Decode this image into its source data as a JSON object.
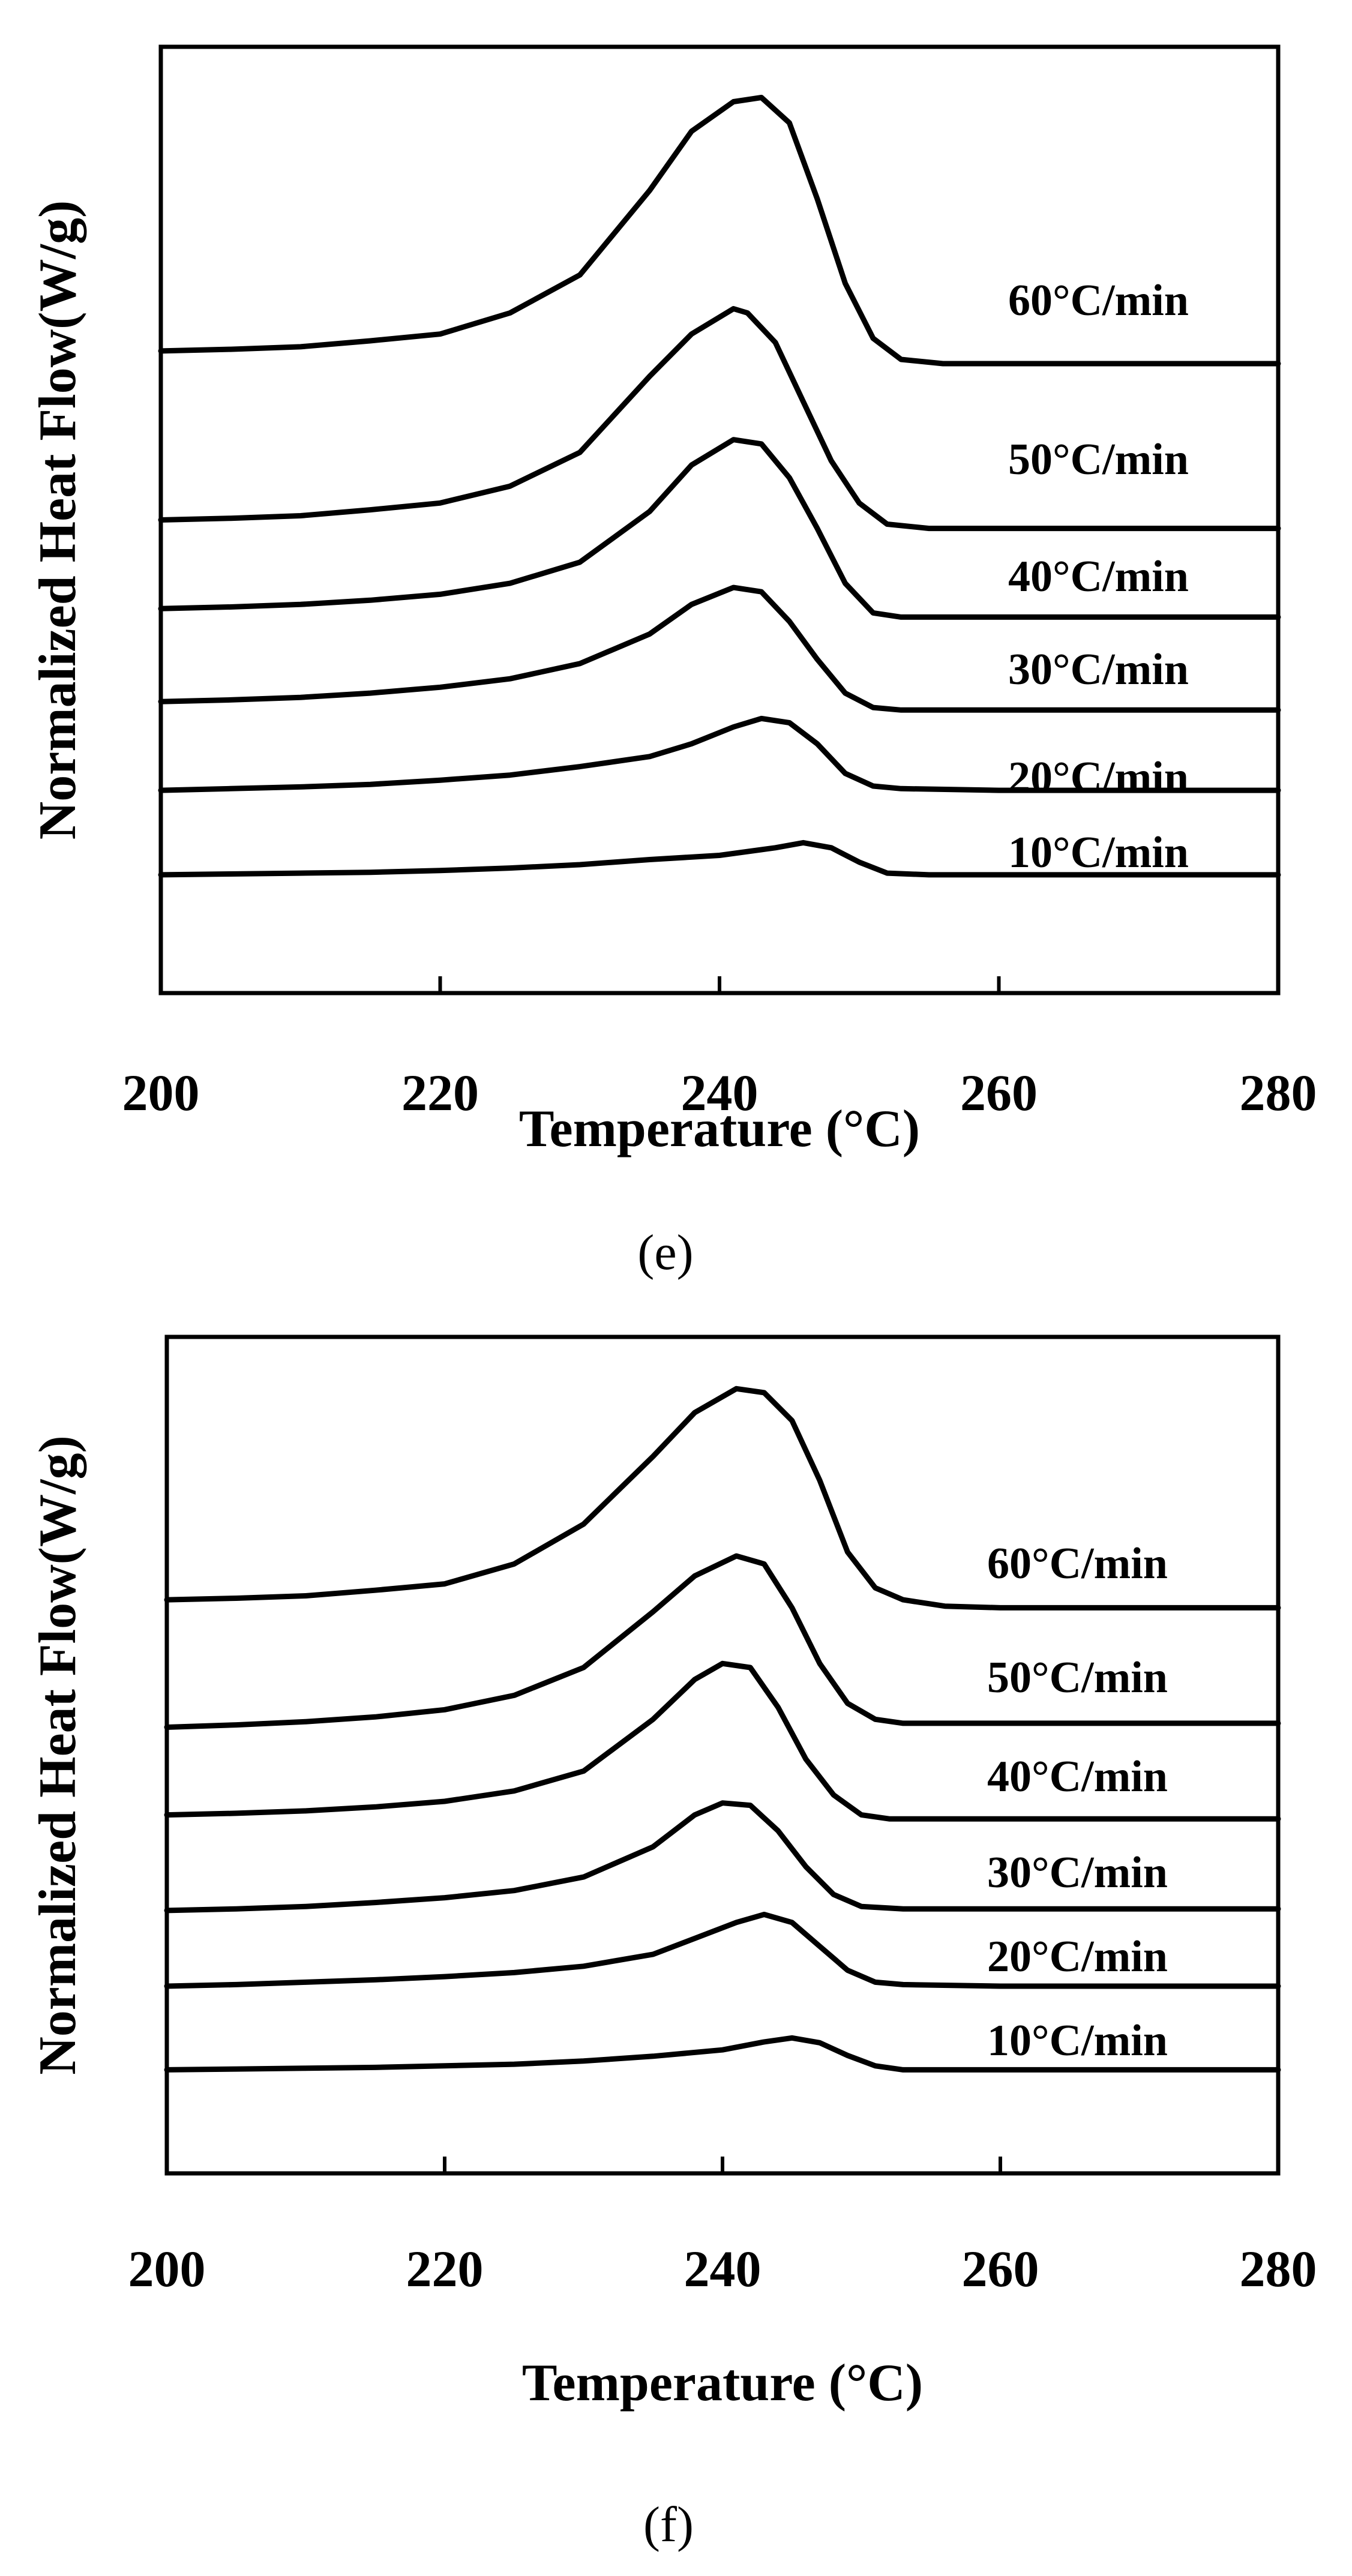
{
  "chart_data": [
    {
      "type": "line",
      "panel": "(e)",
      "xlabel": "Temperature (°C)",
      "ylabel": "Normalized Heat Flow(W/g)",
      "xlim": [
        200,
        280
      ],
      "xticks": [
        200,
        220,
        240,
        260,
        280
      ],
      "x_tick_labels": [
        "200",
        "220",
        "240",
        "260",
        "280"
      ],
      "y_units": "arbitrary (stacked, offset)",
      "series": [
        {
          "name": "60°C/min",
          "label": "60°C/min",
          "baseline": 7.6,
          "peak_height": 3.0,
          "points": [
            [
              200,
              7.6
            ],
            [
              205,
              7.62
            ],
            [
              210,
              7.65
            ],
            [
              215,
              7.72
            ],
            [
              220,
              7.8
            ],
            [
              225,
              8.05
            ],
            [
              230,
              8.5
            ],
            [
              235,
              9.5
            ],
            [
              238,
              10.2
            ],
            [
              241,
              10.55
            ],
            [
              243,
              10.6
            ],
            [
              245,
              10.3
            ],
            [
              247,
              9.4
            ],
            [
              249,
              8.4
            ],
            [
              251,
              7.75
            ],
            [
              253,
              7.5
            ],
            [
              256,
              7.45
            ],
            [
              260,
              7.45
            ],
            [
              270,
              7.45
            ],
            [
              280,
              7.45
            ]
          ]
        },
        {
          "name": "50°C/min",
          "label": "50°C/min",
          "baseline": 5.6,
          "peak_height": 2.55,
          "points": [
            [
              200,
              5.6
            ],
            [
              205,
              5.62
            ],
            [
              210,
              5.65
            ],
            [
              215,
              5.72
            ],
            [
              220,
              5.8
            ],
            [
              225,
              6.0
            ],
            [
              230,
              6.4
            ],
            [
              235,
              7.3
            ],
            [
              238,
              7.8
            ],
            [
              241,
              8.1
            ],
            [
              242,
              8.05
            ],
            [
              244,
              7.7
            ],
            [
              246,
              7.0
            ],
            [
              248,
              6.3
            ],
            [
              250,
              5.8
            ],
            [
              252,
              5.55
            ],
            [
              255,
              5.5
            ],
            [
              260,
              5.5
            ],
            [
              270,
              5.5
            ],
            [
              280,
              5.5
            ]
          ]
        },
        {
          "name": "40°C/min",
          "label": "40°C/min",
          "baseline": 4.55,
          "peak_height": 2.0,
          "points": [
            [
              200,
              4.55
            ],
            [
              205,
              4.57
            ],
            [
              210,
              4.6
            ],
            [
              215,
              4.65
            ],
            [
              220,
              4.72
            ],
            [
              225,
              4.85
            ],
            [
              230,
              5.1
            ],
            [
              235,
              5.7
            ],
            [
              238,
              6.25
            ],
            [
              241,
              6.55
            ],
            [
              243,
              6.5
            ],
            [
              245,
              6.1
            ],
            [
              247,
              5.5
            ],
            [
              249,
              4.85
            ],
            [
              251,
              4.5
            ],
            [
              253,
              4.45
            ],
            [
              255,
              4.45
            ],
            [
              260,
              4.45
            ],
            [
              270,
              4.45
            ],
            [
              280,
              4.45
            ]
          ]
        },
        {
          "name": "30°C/min",
          "label": "30°C/min",
          "baseline": 3.45,
          "peak_height": 1.35,
          "points": [
            [
              200,
              3.45
            ],
            [
              205,
              3.47
            ],
            [
              210,
              3.5
            ],
            [
              215,
              3.55
            ],
            [
              220,
              3.62
            ],
            [
              225,
              3.72
            ],
            [
              230,
              3.9
            ],
            [
              235,
              4.25
            ],
            [
              238,
              4.6
            ],
            [
              241,
              4.8
            ],
            [
              243,
              4.75
            ],
            [
              245,
              4.4
            ],
            [
              247,
              3.95
            ],
            [
              249,
              3.55
            ],
            [
              251,
              3.38
            ],
            [
              253,
              3.35
            ],
            [
              260,
              3.35
            ],
            [
              270,
              3.35
            ],
            [
              280,
              3.35
            ]
          ]
        },
        {
          "name": "20°C/min",
          "label": "20°C/min",
          "baseline": 2.4,
          "peak_height": 0.9,
          "points": [
            [
              200,
              2.4
            ],
            [
              205,
              2.42
            ],
            [
              210,
              2.44
            ],
            [
              215,
              2.47
            ],
            [
              220,
              2.52
            ],
            [
              225,
              2.58
            ],
            [
              230,
              2.68
            ],
            [
              235,
              2.8
            ],
            [
              238,
              2.95
            ],
            [
              241,
              3.15
            ],
            [
              243,
              3.25
            ],
            [
              245,
              3.2
            ],
            [
              247,
              2.95
            ],
            [
              249,
              2.6
            ],
            [
              251,
              2.45
            ],
            [
              253,
              2.42
            ],
            [
              260,
              2.4
            ],
            [
              270,
              2.4
            ],
            [
              280,
              2.4
            ]
          ]
        },
        {
          "name": "10°C/min",
          "label": "10°C/min",
          "baseline": 1.4,
          "peak_height": 0.55,
          "points": [
            [
              200,
              1.4
            ],
            [
              205,
              1.41
            ],
            [
              210,
              1.42
            ],
            [
              215,
              1.43
            ],
            [
              220,
              1.45
            ],
            [
              225,
              1.48
            ],
            [
              230,
              1.52
            ],
            [
              235,
              1.58
            ],
            [
              240,
              1.63
            ],
            [
              244,
              1.72
            ],
            [
              246,
              1.78
            ],
            [
              248,
              1.72
            ],
            [
              250,
              1.55
            ],
            [
              252,
              1.42
            ],
            [
              255,
              1.4
            ],
            [
              260,
              1.4
            ],
            [
              270,
              1.4
            ],
            [
              280,
              1.4
            ]
          ]
        }
      ]
    },
    {
      "type": "line",
      "panel": "(f)",
      "xlabel": "Temperature (°C)",
      "ylabel": "Normalized Heat Flow(W/g)",
      "xlim": [
        200,
        280
      ],
      "xticks": [
        200,
        220,
        240,
        260,
        280
      ],
      "x_tick_labels": [
        "200",
        "220",
        "240",
        "260",
        "280"
      ],
      "y_units": "arbitrary (stacked, offset)",
      "series": [
        {
          "name": "60°C/min",
          "label": "60°C/min",
          "baseline": 7.2,
          "peak_height": 2.65,
          "points": [
            [
              200,
              7.2
            ],
            [
              205,
              7.22
            ],
            [
              210,
              7.25
            ],
            [
              215,
              7.32
            ],
            [
              220,
              7.4
            ],
            [
              225,
              7.65
            ],
            [
              230,
              8.15
            ],
            [
              235,
              9.0
            ],
            [
              238,
              9.55
            ],
            [
              241,
              9.85
            ],
            [
              243,
              9.8
            ],
            [
              245,
              9.45
            ],
            [
              247,
              8.7
            ],
            [
              249,
              7.8
            ],
            [
              251,
              7.35
            ],
            [
              253,
              7.2
            ],
            [
              256,
              7.12
            ],
            [
              260,
              7.1
            ],
            [
              270,
              7.1
            ],
            [
              280,
              7.1
            ]
          ]
        },
        {
          "name": "50°C/min",
          "label": "50°C/min",
          "baseline": 5.6,
          "peak_height": 2.15,
          "points": [
            [
              200,
              5.6
            ],
            [
              205,
              5.63
            ],
            [
              210,
              5.67
            ],
            [
              215,
              5.73
            ],
            [
              220,
              5.82
            ],
            [
              225,
              6.0
            ],
            [
              230,
              6.35
            ],
            [
              235,
              7.05
            ],
            [
              238,
              7.5
            ],
            [
              241,
              7.75
            ],
            [
              243,
              7.65
            ],
            [
              245,
              7.1
            ],
            [
              247,
              6.4
            ],
            [
              249,
              5.9
            ],
            [
              251,
              5.7
            ],
            [
              253,
              5.65
            ],
            [
              260,
              5.65
            ],
            [
              270,
              5.65
            ],
            [
              280,
              5.65
            ]
          ]
        },
        {
          "name": "40°C/min",
          "label": "40°C/min",
          "baseline": 4.5,
          "peak_height": 1.95,
          "points": [
            [
              200,
              4.5
            ],
            [
              205,
              4.52
            ],
            [
              210,
              4.55
            ],
            [
              215,
              4.6
            ],
            [
              220,
              4.67
            ],
            [
              225,
              4.8
            ],
            [
              230,
              5.05
            ],
            [
              235,
              5.7
            ],
            [
              238,
              6.2
            ],
            [
              240,
              6.4
            ],
            [
              242,
              6.35
            ],
            [
              244,
              5.85
            ],
            [
              246,
              5.2
            ],
            [
              248,
              4.75
            ],
            [
              250,
              4.5
            ],
            [
              252,
              4.45
            ],
            [
              260,
              4.45
            ],
            [
              270,
              4.45
            ],
            [
              280,
              4.45
            ]
          ]
        },
        {
          "name": "30°C/min",
          "label": "30°C/min",
          "baseline": 3.3,
          "peak_height": 1.35,
          "points": [
            [
              200,
              3.3
            ],
            [
              205,
              3.32
            ],
            [
              210,
              3.35
            ],
            [
              215,
              3.4
            ],
            [
              220,
              3.46
            ],
            [
              225,
              3.55
            ],
            [
              230,
              3.72
            ],
            [
              235,
              4.1
            ],
            [
              238,
              4.5
            ],
            [
              240,
              4.65
            ],
            [
              242,
              4.62
            ],
            [
              244,
              4.3
            ],
            [
              246,
              3.85
            ],
            [
              248,
              3.5
            ],
            [
              250,
              3.35
            ],
            [
              253,
              3.32
            ],
            [
              260,
              3.32
            ],
            [
              270,
              3.32
            ],
            [
              280,
              3.32
            ]
          ]
        },
        {
          "name": "20°C/min",
          "label": "20°C/min",
          "baseline": 2.35,
          "peak_height": 0.9,
          "points": [
            [
              200,
              2.35
            ],
            [
              205,
              2.37
            ],
            [
              210,
              2.4
            ],
            [
              215,
              2.43
            ],
            [
              220,
              2.47
            ],
            [
              225,
              2.52
            ],
            [
              230,
              2.6
            ],
            [
              235,
              2.75
            ],
            [
              238,
              2.95
            ],
            [
              241,
              3.15
            ],
            [
              243,
              3.25
            ],
            [
              245,
              3.15
            ],
            [
              247,
              2.85
            ],
            [
              249,
              2.55
            ],
            [
              251,
              2.4
            ],
            [
              253,
              2.37
            ],
            [
              260,
              2.35
            ],
            [
              270,
              2.35
            ],
            [
              280,
              2.35
            ]
          ]
        },
        {
          "name": "10°C/min",
          "label": "10°C/min",
          "baseline": 1.3,
          "peak_height": 0.45,
          "points": [
            [
              200,
              1.3
            ],
            [
              205,
              1.31
            ],
            [
              210,
              1.32
            ],
            [
              215,
              1.33
            ],
            [
              220,
              1.35
            ],
            [
              225,
              1.37
            ],
            [
              230,
              1.41
            ],
            [
              235,
              1.47
            ],
            [
              240,
              1.55
            ],
            [
              243,
              1.65
            ],
            [
              245,
              1.7
            ],
            [
              247,
              1.64
            ],
            [
              249,
              1.48
            ],
            [
              251,
              1.35
            ],
            [
              253,
              1.3
            ],
            [
              260,
              1.3
            ],
            [
              270,
              1.3
            ],
            [
              280,
              1.3
            ]
          ]
        }
      ]
    }
  ]
}
